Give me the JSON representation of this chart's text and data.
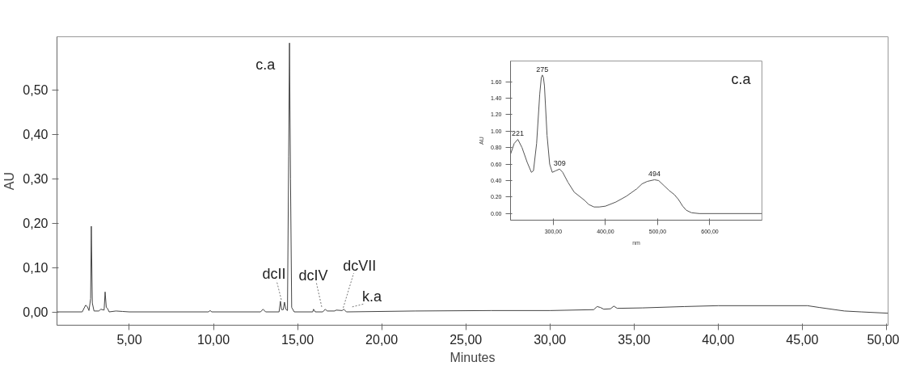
{
  "chart_data": [
    {
      "type": "line",
      "xlabel": "Minutes",
      "ylabel": "AU",
      "xlim": [
        0.7,
        50.1
      ],
      "ylim": [
        -0.03,
        0.62
      ],
      "xticks": [
        {
          "value": 5,
          "label": "5,00"
        },
        {
          "value": 10,
          "label": "10,00"
        },
        {
          "value": 15,
          "label": "15,00"
        },
        {
          "value": 20,
          "label": "20,00"
        },
        {
          "value": 25,
          "label": "25,00"
        },
        {
          "value": 30,
          "label": "30,00"
        },
        {
          "value": 35,
          "label": "35,00"
        },
        {
          "value": 40,
          "label": "40,00"
        },
        {
          "value": 45,
          "label": "45,00"
        },
        {
          "value": 50,
          "label": "50,00"
        }
      ],
      "yticks": [
        {
          "value": 0,
          "label": "0,00"
        },
        {
          "value": 0.1,
          "label": "0,10"
        },
        {
          "value": 0.2,
          "label": "0,20"
        },
        {
          "value": 0.3,
          "label": "0,30"
        },
        {
          "value": 0.4,
          "label": "0,40"
        },
        {
          "value": 0.5,
          "label": "0,50"
        }
      ],
      "grid": false,
      "marker": "none",
      "line_style": "solid",
      "x": [
        0.7,
        2.2,
        2.4,
        2.5,
        2.6,
        2.7,
        2.74,
        2.8,
        2.9,
        3.2,
        3.3,
        3.5,
        3.56,
        3.63,
        3.7,
        3.8,
        4.2,
        4.6,
        5.0,
        9.7,
        9.8,
        9.9,
        12.8,
        12.95,
        13.1,
        13.9,
        13.98,
        14.05,
        14.15,
        14.22,
        14.3,
        14.4,
        14.47,
        14.52,
        14.58,
        14.65,
        14.8,
        15.9,
        15.95,
        16.05,
        16.5,
        16.65,
        16.75,
        17.2,
        17.3,
        17.65,
        17.75,
        17.9,
        22.0,
        26.5,
        30.0,
        32.6,
        32.8,
        33.0,
        33.2,
        33.6,
        33.8,
        34.0,
        35.5,
        38.0,
        40.0,
        45.3,
        46.0,
        47.5,
        48.5,
        50.1
      ],
      "series": [
        {
          "color": "#444444",
          "values": [
            0.0,
            0.0,
            0.015,
            0.012,
            0.003,
            0.03,
            0.193,
            0.02,
            0.002,
            0.002,
            0.006,
            0.004,
            0.045,
            0.01,
            0.008,
            0.0,
            0.002,
            0.001,
            0.0,
            0.0,
            0.003,
            0.0,
            0.0,
            0.006,
            0.0,
            0.0,
            0.024,
            0.005,
            0.005,
            0.022,
            0.006,
            0.003,
            0.35,
            0.606,
            0.3,
            0.01,
            0.0,
            0.0,
            0.006,
            0.0,
            0.0,
            0.006,
            0.002,
            0.002,
            0.004,
            0.003,
            0.006,
            0.0,
            0.002,
            0.003,
            0.003,
            0.005,
            0.012,
            0.01,
            0.006,
            0.007,
            0.013,
            0.008,
            0.009,
            0.012,
            0.014,
            0.014,
            0.01,
            0.002,
            0.0,
            -0.003
          ]
        }
      ],
      "annotations": [
        {
          "text": "c.a",
          "x": 14.52,
          "y": 0.606
        },
        {
          "text": "dcII",
          "x": 14.22,
          "y": 0.022
        },
        {
          "text": "dcIV",
          "x": 16.65,
          "y": 0.006
        },
        {
          "text": "dcVII",
          "x": 17.3,
          "y": 0.004
        },
        {
          "text": "k.a",
          "x": 17.75,
          "y": 0.006
        }
      ]
    },
    {
      "type": "line",
      "xlabel": "nm",
      "ylabel": "AU",
      "xlim": [
        218,
        700
      ],
      "ylim": [
        -0.08,
        1.85
      ],
      "xticks": [
        {
          "value": 300,
          "label": "300,00"
        },
        {
          "value": 400,
          "label": "400,00"
        },
        {
          "value": 500,
          "label": "500,00"
        },
        {
          "value": 600,
          "label": "600,00"
        }
      ],
      "yticks": [
        {
          "value": 0,
          "label": "0.00"
        },
        {
          "value": 0.2,
          "label": "0.20"
        },
        {
          "value": 0.4,
          "label": "0.40"
        },
        {
          "value": 0.6,
          "label": "0.60"
        },
        {
          "value": 0.8,
          "label": "0.80"
        },
        {
          "value": 1.0,
          "label": "1.00"
        },
        {
          "value": 1.2,
          "label": "1.20"
        },
        {
          "value": 1.4,
          "label": "1.40"
        },
        {
          "value": 1.6,
          "label": "1.60"
        }
      ],
      "grid": false,
      "marker": "none",
      "line_style": "solid",
      "x": [
        218,
        225,
        232,
        240,
        250,
        258,
        262,
        268,
        274,
        277,
        279,
        281,
        283,
        288,
        293,
        298,
        305,
        312,
        318,
        328,
        340,
        352,
        360,
        368,
        378,
        388,
        400,
        420,
        440,
        460,
        470,
        480,
        494,
        502,
        512,
        522,
        532,
        540,
        548,
        555,
        565,
        580,
        700
      ],
      "series": [
        {
          "color": "#555555",
          "values": [
            0.72,
            0.85,
            0.9,
            0.8,
            0.62,
            0.5,
            0.52,
            0.85,
            1.45,
            1.65,
            1.68,
            1.65,
            1.55,
            0.95,
            0.6,
            0.5,
            0.52,
            0.54,
            0.5,
            0.38,
            0.26,
            0.2,
            0.16,
            0.11,
            0.08,
            0.08,
            0.09,
            0.14,
            0.21,
            0.3,
            0.36,
            0.39,
            0.41,
            0.4,
            0.34,
            0.28,
            0.23,
            0.17,
            0.09,
            0.04,
            0.01,
            0.0,
            0.0
          ]
        }
      ],
      "annotations": [
        {
          "text": "221",
          "x": 232,
          "y": 0.9
        },
        {
          "text": "275",
          "x": 279,
          "y": 1.68
        },
        {
          "text": "309",
          "x": 312,
          "y": 0.54
        },
        {
          "text": "494",
          "x": 494,
          "y": 0.41
        },
        "c.a"
      ]
    }
  ]
}
